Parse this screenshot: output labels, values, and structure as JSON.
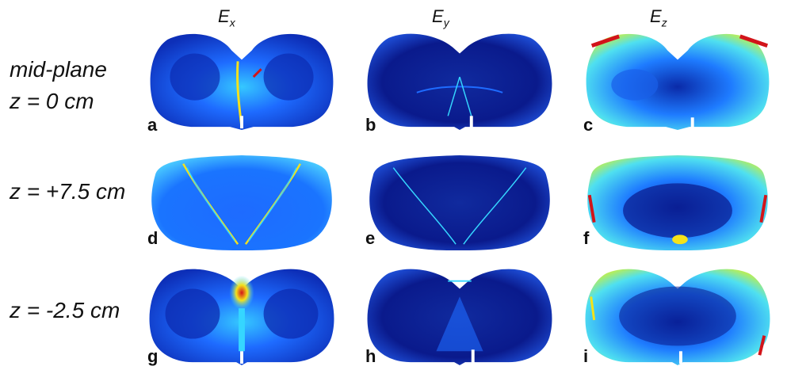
{
  "figure": {
    "columns": [
      {
        "base": "E",
        "sub": "x"
      },
      {
        "base": "E",
        "sub": "y"
      },
      {
        "base": "E",
        "sub": "z"
      }
    ],
    "rows": [
      {
        "line1": "mid-plane",
        "line2": "z = 0 cm"
      },
      {
        "line1": "z = +7.5 cm"
      },
      {
        "line1": "z = -2.5 cm"
      }
    ],
    "panel_letters": [
      "a",
      "b",
      "c",
      "d",
      "e",
      "f",
      "g",
      "h",
      "i"
    ],
    "colormap": {
      "low": "#0a1a8c",
      "mid": "#1e6bff",
      "cyan": "#35d6ff",
      "high": "#f5e21a",
      "peak": "#d2141a"
    }
  }
}
